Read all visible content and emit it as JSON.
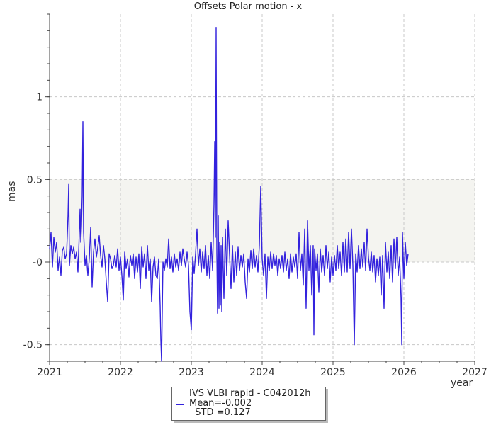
{
  "chart_data": {
    "type": "line",
    "title": "Offsets Polar motion - x",
    "ylabel": "mas",
    "xlabel": "year",
    "xlim": [
      2021,
      2027
    ],
    "ylim": [
      -0.6,
      1.5
    ],
    "x_ticks": [
      "2021",
      "2022",
      "2023",
      "2024",
      "2025",
      "2026",
      "2027"
    ],
    "y_ticks": [
      {
        "value": 1,
        "label": "1"
      },
      {
        "value": 0.5,
        "label": "0.5"
      },
      {
        "value": 0,
        "label": "-0"
      },
      {
        "value": -0.5,
        "label": "-0.5"
      }
    ],
    "band": [
      0,
      0.5
    ],
    "grid": true,
    "series": [
      {
        "name": "IVS VLBI rapid - C042012h",
        "color": "#3322dd",
        "points": [
          [
            2021.0,
            0.08
          ],
          [
            2021.02,
            0.18
          ],
          [
            2021.04,
            -0.03
          ],
          [
            2021.06,
            0.15
          ],
          [
            2021.08,
            0.06
          ],
          [
            2021.1,
            0.12
          ],
          [
            2021.12,
            -0.05
          ],
          [
            2021.14,
            0.03
          ],
          [
            2021.16,
            -0.08
          ],
          [
            2021.18,
            0.07
          ],
          [
            2021.2,
            0.09
          ],
          [
            2021.22,
            0.02
          ],
          [
            2021.24,
            0.05
          ],
          [
            2021.26,
            0.28
          ],
          [
            2021.27,
            0.47
          ],
          [
            2021.28,
            -0.02
          ],
          [
            2021.3,
            0.1
          ],
          [
            2021.32,
            0.05
          ],
          [
            2021.34,
            0.09
          ],
          [
            2021.36,
            0.02
          ],
          [
            2021.38,
            0.06
          ],
          [
            2021.4,
            -0.06
          ],
          [
            2021.42,
            0.18
          ],
          [
            2021.43,
            0.32
          ],
          [
            2021.44,
            0.12
          ],
          [
            2021.45,
            0.22
          ],
          [
            2021.46,
            0.4
          ],
          [
            2021.47,
            0.85
          ],
          [
            2021.48,
            0.18
          ],
          [
            2021.5,
            -0.02
          ],
          [
            2021.52,
            0.04
          ],
          [
            2021.54,
            -0.08
          ],
          [
            2021.56,
            0.02
          ],
          [
            2021.58,
            0.21
          ],
          [
            2021.6,
            -0.15
          ],
          [
            2021.62,
            0.06
          ],
          [
            2021.64,
            0.14
          ],
          [
            2021.66,
            0.03
          ],
          [
            2021.68,
            0.09
          ],
          [
            2021.7,
            0.16
          ],
          [
            2021.72,
            0.04
          ],
          [
            2021.74,
            -0.03
          ],
          [
            2021.76,
            0.1
          ],
          [
            2021.78,
            0.02
          ],
          [
            2021.8,
            -0.12
          ],
          [
            2021.82,
            -0.24
          ],
          [
            2021.84,
            0.05
          ],
          [
            2021.86,
            0.02
          ],
          [
            2021.88,
            -0.04
          ],
          [
            2021.9,
            -0.02
          ],
          [
            2021.92,
            0.04
          ],
          [
            2021.94,
            -0.03
          ],
          [
            2021.96,
            0.08
          ],
          [
            2021.98,
            -0.05
          ],
          [
            2022.0,
            0.03
          ],
          [
            2022.02,
            -0.08
          ],
          [
            2022.04,
            -0.23
          ],
          [
            2022.06,
            0.06
          ],
          [
            2022.08,
            -0.04
          ],
          [
            2022.1,
            0.02
          ],
          [
            2022.12,
            -0.09
          ],
          [
            2022.14,
            0.04
          ],
          [
            2022.16,
            -0.02
          ],
          [
            2022.18,
            0.05
          ],
          [
            2022.2,
            -0.1
          ],
          [
            2022.22,
            0.03
          ],
          [
            2022.24,
            -0.06
          ],
          [
            2022.26,
            0.05
          ],
          [
            2022.28,
            -0.16
          ],
          [
            2022.3,
            0.09
          ],
          [
            2022.32,
            -0.03
          ],
          [
            2022.34,
            0.05
          ],
          [
            2022.36,
            -0.1
          ],
          [
            2022.38,
            0.1
          ],
          [
            2022.4,
            -0.05
          ],
          [
            2022.42,
            0.02
          ],
          [
            2022.44,
            -0.24
          ],
          [
            2022.46,
            -0.03
          ],
          [
            2022.48,
            0.03
          ],
          [
            2022.5,
            -0.08
          ],
          [
            2022.52,
            -0.1
          ],
          [
            2022.54,
            0.02
          ],
          [
            2022.56,
            -0.26
          ],
          [
            2022.57,
            -0.47
          ],
          [
            2022.58,
            -0.6
          ],
          [
            2022.6,
            0.0
          ],
          [
            2022.62,
            -0.05
          ],
          [
            2022.64,
            0.02
          ],
          [
            2022.66,
            -0.03
          ],
          [
            2022.68,
            0.14
          ],
          [
            2022.7,
            -0.04
          ],
          [
            2022.72,
            0.03
          ],
          [
            2022.74,
            -0.06
          ],
          [
            2022.76,
            0.05
          ],
          [
            2022.78,
            -0.03
          ],
          [
            2022.8,
            0.02
          ],
          [
            2022.82,
            -0.05
          ],
          [
            2022.84,
            0.06
          ],
          [
            2022.86,
            -0.02
          ],
          [
            2022.88,
            0.08
          ],
          [
            2022.9,
            0.02
          ],
          [
            2022.92,
            -0.03
          ],
          [
            2022.94,
            0.06
          ],
          [
            2022.96,
            -0.02
          ],
          [
            2022.98,
            -0.3
          ],
          [
            2023.0,
            -0.41
          ],
          [
            2023.02,
            0.03
          ],
          [
            2023.04,
            -0.07
          ],
          [
            2023.06,
            0.05
          ],
          [
            2023.08,
            0.2
          ],
          [
            2023.1,
            -0.02
          ],
          [
            2023.12,
            0.08
          ],
          [
            2023.14,
            -0.06
          ],
          [
            2023.16,
            0.06
          ],
          [
            2023.18,
            -0.04
          ],
          [
            2023.2,
            0.1
          ],
          [
            2023.22,
            -0.08
          ],
          [
            2023.24,
            0.04
          ],
          [
            2023.26,
            -0.1
          ],
          [
            2023.28,
            0.12
          ],
          [
            2023.3,
            -0.05
          ],
          [
            2023.32,
            0.35
          ],
          [
            2023.33,
            0.73
          ],
          [
            2023.34,
            0.15
          ],
          [
            2023.35,
            1.42
          ],
          [
            2023.36,
            0.05
          ],
          [
            2023.37,
            -0.31
          ],
          [
            2023.38,
            0.28
          ],
          [
            2023.39,
            -0.28
          ],
          [
            2023.4,
            0.12
          ],
          [
            2023.41,
            -0.26
          ],
          [
            2023.42,
            0.1
          ],
          [
            2023.43,
            -0.3
          ],
          [
            2023.44,
            0.15
          ],
          [
            2023.46,
            -0.22
          ],
          [
            2023.48,
            0.2
          ],
          [
            2023.5,
            -0.08
          ],
          [
            2023.52,
            0.25
          ],
          [
            2023.54,
            0.04
          ],
          [
            2023.56,
            -0.16
          ],
          [
            2023.58,
            0.1
          ],
          [
            2023.6,
            -0.12
          ],
          [
            2023.62,
            0.06
          ],
          [
            2023.64,
            -0.08
          ],
          [
            2023.66,
            0.09
          ],
          [
            2023.68,
            -0.05
          ],
          [
            2023.7,
            0.04
          ],
          [
            2023.72,
            -0.03
          ],
          [
            2023.74,
            0.05
          ],
          [
            2023.76,
            -0.12
          ],
          [
            2023.78,
            -0.22
          ],
          [
            2023.8,
            0.02
          ],
          [
            2023.82,
            -0.06
          ],
          [
            2023.84,
            0.07
          ],
          [
            2023.86,
            -0.04
          ],
          [
            2023.88,
            0.08
          ],
          [
            2023.9,
            -0.03
          ],
          [
            2023.92,
            0.04
          ],
          [
            2023.94,
            -0.06
          ],
          [
            2023.96,
            0.1
          ],
          [
            2023.98,
            0.46
          ],
          [
            2024.0,
            0.02
          ],
          [
            2024.02,
            -0.08
          ],
          [
            2024.04,
            0.05
          ],
          [
            2024.06,
            -0.22
          ],
          [
            2024.08,
            0.03
          ],
          [
            2024.1,
            -0.05
          ],
          [
            2024.12,
            0.06
          ],
          [
            2024.14,
            -0.04
          ],
          [
            2024.16,
            0.05
          ],
          [
            2024.18,
            -0.02
          ],
          [
            2024.2,
            0.04
          ],
          [
            2024.22,
            -0.08
          ],
          [
            2024.24,
            0.02
          ],
          [
            2024.26,
            -0.04
          ],
          [
            2024.28,
            0.04
          ],
          [
            2024.3,
            -0.06
          ],
          [
            2024.32,
            0.06
          ],
          [
            2024.34,
            -0.05
          ],
          [
            2024.36,
            0.02
          ],
          [
            2024.38,
            -0.1
          ],
          [
            2024.4,
            0.05
          ],
          [
            2024.42,
            -0.06
          ],
          [
            2024.44,
            0.03
          ],
          [
            2024.46,
            -0.03
          ],
          [
            2024.48,
            0.05
          ],
          [
            2024.5,
            -0.1
          ],
          [
            2024.52,
            0.18
          ],
          [
            2024.54,
            -0.05
          ],
          [
            2024.56,
            0.05
          ],
          [
            2024.58,
            -0.14
          ],
          [
            2024.6,
            0.2
          ],
          [
            2024.62,
            -0.28
          ],
          [
            2024.64,
            0.25
          ],
          [
            2024.66,
            -0.05
          ],
          [
            2024.68,
            0.1
          ],
          [
            2024.7,
            -0.2
          ],
          [
            2024.72,
            0.1
          ],
          [
            2024.73,
            -0.44
          ],
          [
            2024.74,
            0.08
          ],
          [
            2024.76,
            -0.05
          ],
          [
            2024.78,
            0.05
          ],
          [
            2024.8,
            -0.18
          ],
          [
            2024.82,
            0.08
          ],
          [
            2024.84,
            -0.06
          ],
          [
            2024.86,
            0.04
          ],
          [
            2024.88,
            -0.08
          ],
          [
            2024.9,
            0.1
          ],
          [
            2024.92,
            -0.04
          ],
          [
            2024.94,
            0.06
          ],
          [
            2024.96,
            -0.12
          ],
          [
            2024.98,
            0.03
          ],
          [
            2025.0,
            -0.08
          ],
          [
            2025.02,
            0.04
          ],
          [
            2025.04,
            -0.05
          ],
          [
            2025.06,
            0.1
          ],
          [
            2025.08,
            -0.04
          ],
          [
            2025.1,
            0.06
          ],
          [
            2025.12,
            -0.08
          ],
          [
            2025.14,
            0.12
          ],
          [
            2025.16,
            -0.06
          ],
          [
            2025.18,
            0.14
          ],
          [
            2025.2,
            -0.06
          ],
          [
            2025.22,
            0.18
          ],
          [
            2025.24,
            -0.04
          ],
          [
            2025.26,
            0.2
          ],
          [
            2025.28,
            -0.02
          ],
          [
            2025.3,
            -0.5
          ],
          [
            2025.32,
            0.05
          ],
          [
            2025.34,
            -0.06
          ],
          [
            2025.36,
            0.1
          ],
          [
            2025.38,
            -0.04
          ],
          [
            2025.4,
            0.08
          ],
          [
            2025.42,
            -0.03
          ],
          [
            2025.44,
            0.12
          ],
          [
            2025.46,
            -0.05
          ],
          [
            2025.48,
            0.2
          ],
          [
            2025.5,
            0.03
          ],
          [
            2025.52,
            -0.05
          ],
          [
            2025.54,
            0.06
          ],
          [
            2025.56,
            -0.06
          ],
          [
            2025.58,
            0.04
          ],
          [
            2025.6,
            -0.12
          ],
          [
            2025.62,
            0.02
          ],
          [
            2025.64,
            -0.08
          ],
          [
            2025.66,
            0.03
          ],
          [
            2025.68,
            -0.2
          ],
          [
            2025.7,
            0.04
          ],
          [
            2025.72,
            -0.28
          ],
          [
            2025.74,
            0.12
          ],
          [
            2025.76,
            -0.06
          ],
          [
            2025.78,
            0.06
          ],
          [
            2025.8,
            -0.1
          ],
          [
            2025.82,
            0.1
          ],
          [
            2025.84,
            -0.12
          ],
          [
            2025.86,
            0.14
          ],
          [
            2025.88,
            -0.04
          ],
          [
            2025.9,
            0.15
          ],
          [
            2025.92,
            -0.08
          ],
          [
            2025.94,
            0.03
          ],
          [
            2025.96,
            -0.22
          ],
          [
            2025.97,
            -0.5
          ],
          [
            2025.98,
            0.18
          ],
          [
            2026.0,
            -0.1
          ],
          [
            2026.02,
            0.12
          ],
          [
            2026.04,
            -0.02
          ],
          [
            2026.06,
            0.05
          ]
        ]
      }
    ],
    "legend": {
      "position": "bottom",
      "lines": [
        "IVS VLBI rapid - C042012h",
        "Mean=-0.002",
        "  STD =0.127"
      ]
    }
  }
}
